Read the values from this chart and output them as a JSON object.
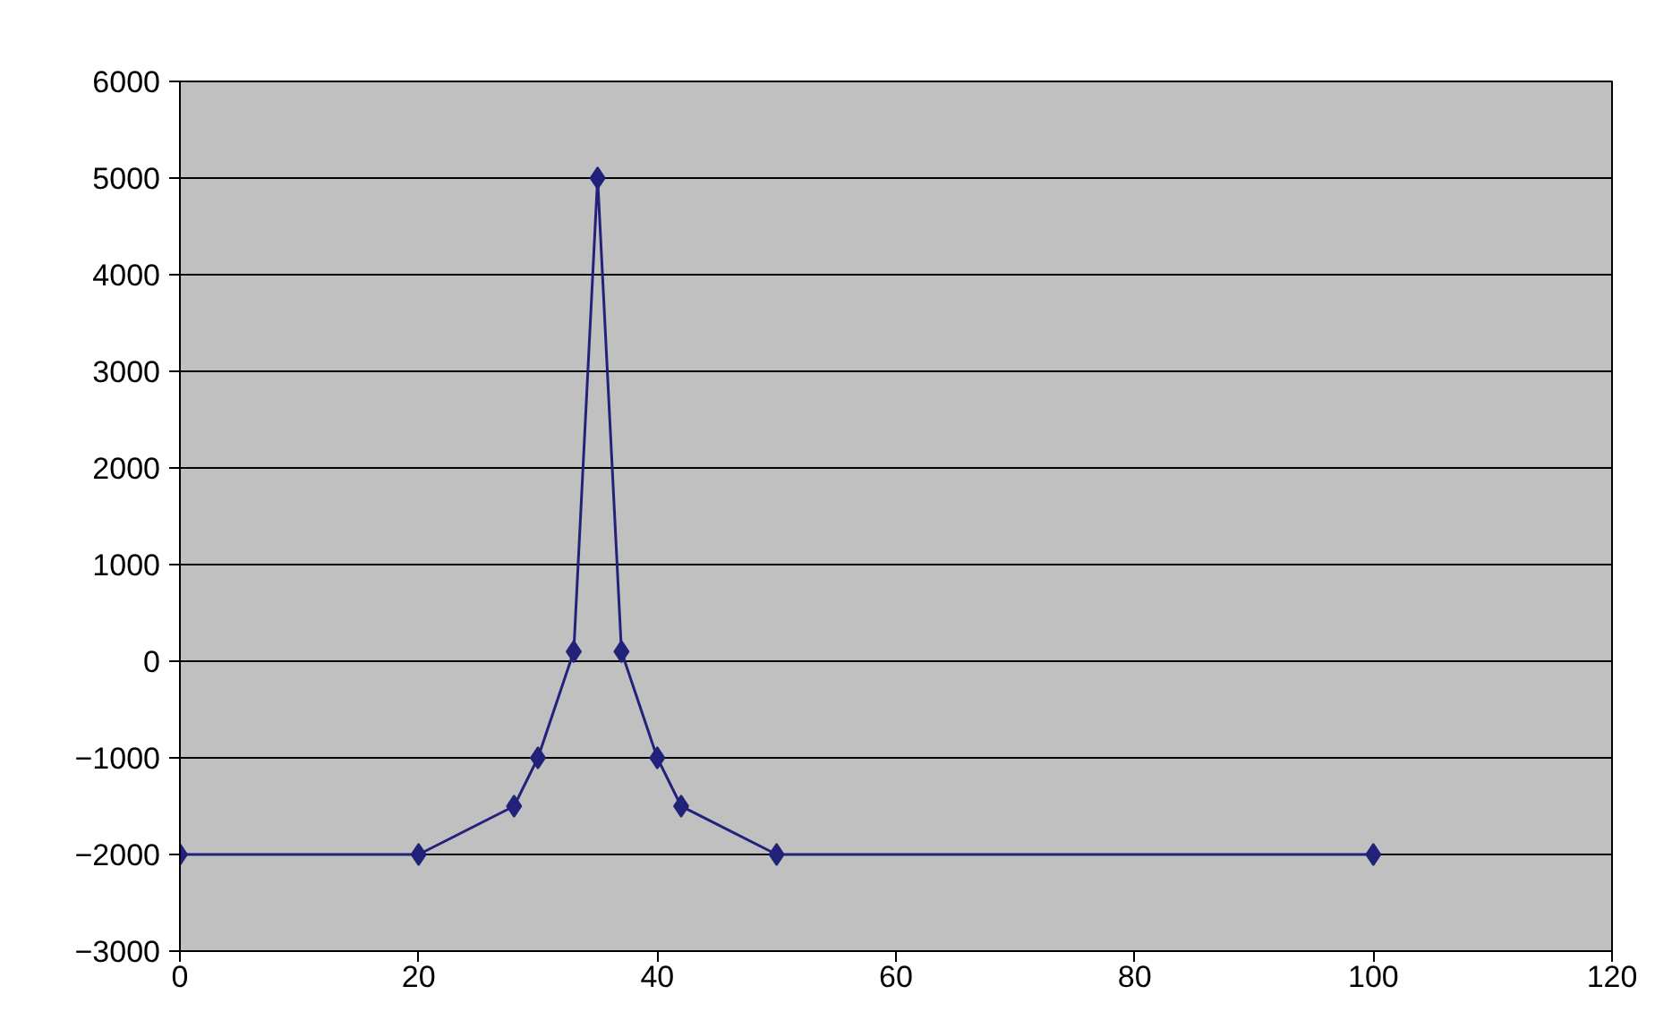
{
  "chart_data": {
    "type": "line",
    "x": [
      0,
      20,
      28,
      30,
      33,
      35,
      37,
      40,
      42,
      50,
      100
    ],
    "series": [
      {
        "color": "#22227a",
        "values": [
          -2000,
          -2000,
          -1500,
          -1000,
          100,
          5000,
          100,
          -1000,
          -1500,
          -2000,
          -2000
        ]
      }
    ],
    "xlim": [
      0,
      120
    ],
    "xticks": [
      0,
      20,
      40,
      60,
      80,
      100,
      120
    ],
    "ylim": [
      -3000,
      6000
    ],
    "yticks": [
      -3000,
      -2000,
      -1000,
      0,
      1000,
      2000,
      3000,
      4000,
      5000,
      6000
    ],
    "grid": "y",
    "marker": "diamond",
    "line_style": "solid"
  }
}
